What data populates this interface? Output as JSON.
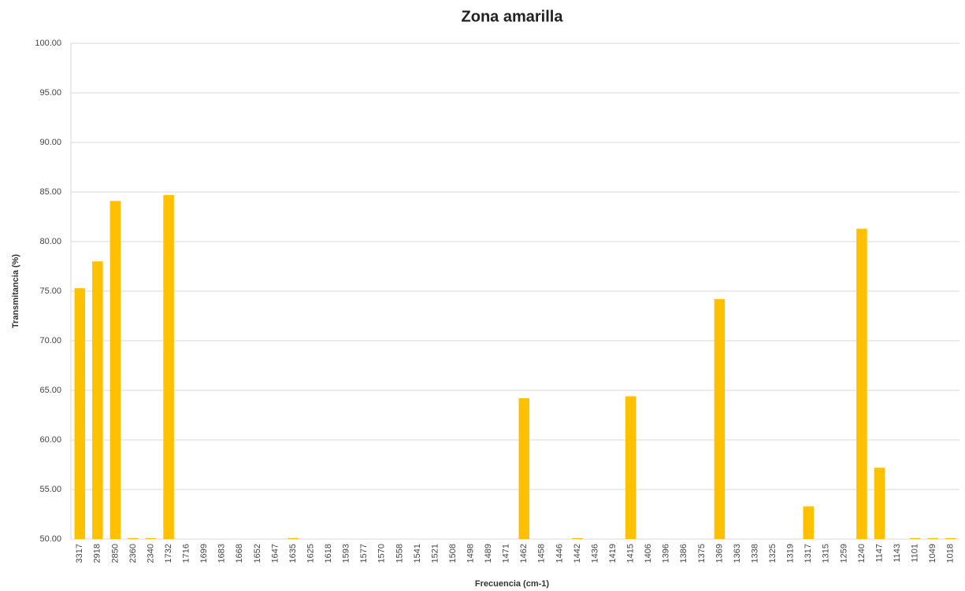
{
  "chart_data": {
    "type": "bar",
    "title": "Zona amarilla",
    "x_label": "Frecuencia (cm-1)",
    "y_label": "Transmitancia (%)",
    "categories": [
      "3317",
      "2918",
      "2850",
      "2360",
      "2340",
      "1732",
      "1716",
      "1699",
      "1683",
      "1668",
      "1652",
      "1647",
      "1635",
      "1625",
      "1618",
      "1593",
      "1577",
      "1570",
      "1558",
      "1541",
      "1521",
      "1508",
      "1498",
      "1489",
      "1471",
      "1462",
      "1458",
      "1446",
      "1442",
      "1436",
      "1419",
      "1415",
      "1406",
      "1396",
      "1386",
      "1375",
      "1369",
      "1363",
      "1338",
      "1325",
      "1319",
      "1317",
      "1315",
      "1259",
      "1240",
      "1147",
      "1143",
      "1101",
      "1049",
      "1018"
    ],
    "values": [
      75.3,
      78.0,
      84.1,
      50.1,
      50.1,
      84.7,
      null,
      null,
      null,
      null,
      null,
      null,
      50.1,
      null,
      null,
      null,
      null,
      null,
      null,
      null,
      null,
      null,
      null,
      null,
      null,
      64.2,
      null,
      null,
      50.1,
      null,
      null,
      64.4,
      null,
      null,
      null,
      null,
      74.2,
      null,
      null,
      null,
      null,
      53.3,
      null,
      null,
      81.3,
      57.2,
      null,
      50.1,
      50.1,
      50.1
    ],
    "color": "#ffc000",
    "ylim": [
      50,
      100
    ],
    "yticks": [
      {
        "value": 50,
        "label": "50.00"
      },
      {
        "value": 55,
        "label": "55.00"
      },
      {
        "value": 60,
        "label": "60.00"
      },
      {
        "value": 65,
        "label": "65.00"
      },
      {
        "value": 70,
        "label": "70.00"
      },
      {
        "value": 75,
        "label": "75.00"
      },
      {
        "value": 80,
        "label": "80.00"
      },
      {
        "value": 85,
        "label": "85.00"
      },
      {
        "value": 90,
        "label": "90.00"
      },
      {
        "value": 95,
        "label": "95.00"
      },
      {
        "value": 100,
        "label": "100.00"
      }
    ],
    "grid": true
  }
}
